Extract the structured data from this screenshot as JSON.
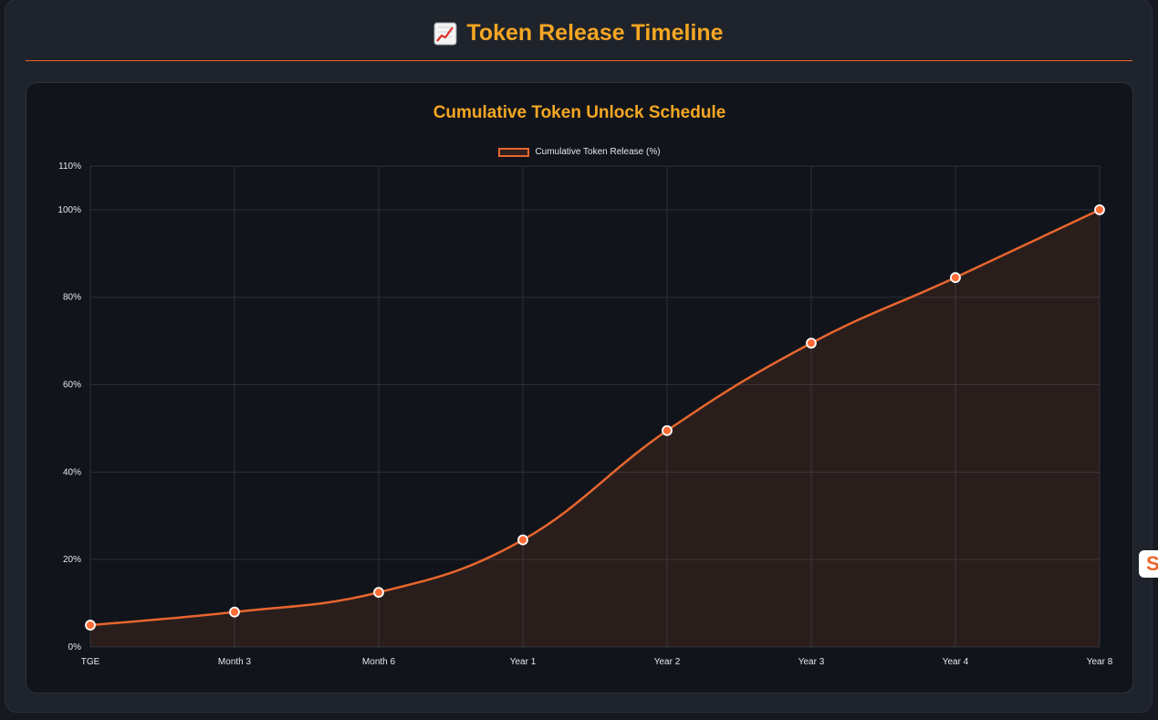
{
  "header": {
    "title": "Token Release Timeline"
  },
  "colors": {
    "accent": "#f5a623",
    "line": "#e8662e",
    "point_fill": "#ff6b35",
    "area_fill": "rgba(232,102,46,0.12)",
    "grid": "#2a2f38",
    "tick": "#e5e7eb"
  },
  "chart_data": {
    "type": "line",
    "title": "Cumulative Token Unlock Schedule",
    "categories": [
      "TGE",
      "Month 3",
      "Month 6",
      "Year 1",
      "Year 2",
      "Year 3",
      "Year 4",
      "Year 8"
    ],
    "series": [
      {
        "name": "Cumulative Token Release (%)",
        "values": [
          5,
          8,
          12.5,
          24.5,
          49.5,
          69.5,
          84.5,
          100
        ]
      }
    ],
    "ylim": [
      0,
      110
    ],
    "yticks": [
      0,
      20,
      40,
      60,
      80,
      100,
      110
    ],
    "ytick_labels": [
      "0%",
      "20%",
      "40%",
      "60%",
      "80%",
      "100%",
      "110%"
    ],
    "grid": true,
    "fill": true,
    "legend_position": "top-center"
  },
  "side_widget": {
    "label": "S"
  }
}
